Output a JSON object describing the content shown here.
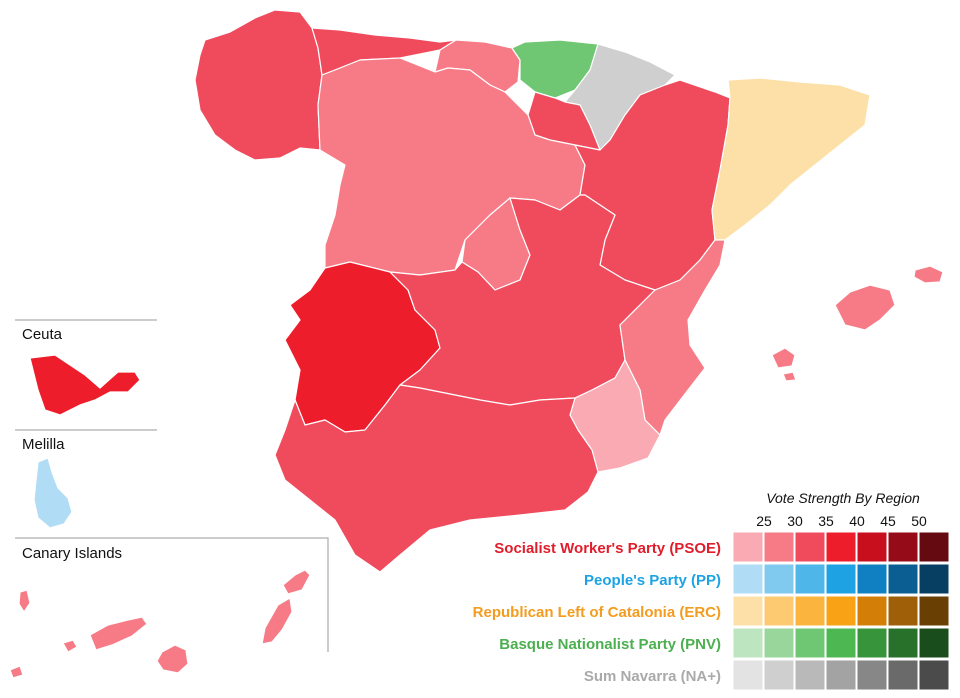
{
  "insets": {
    "ceuta": "Ceuta",
    "melilla": "Melilla",
    "canary": "Canary Islands"
  },
  "legend": {
    "title": "Vote Strength By Region",
    "ticks": [
      "25",
      "30",
      "35",
      "40",
      "45",
      "50"
    ],
    "parties": [
      {
        "name": "Socialist Worker's Party (PSOE)",
        "label_color": "#e11d2b",
        "shades": [
          "#f9aab2",
          "#f77b86",
          "#ef4b5d",
          "#ee1d2c",
          "#c80f1e",
          "#950b17",
          "#650a10"
        ]
      },
      {
        "name": "People's Party (PP)",
        "label_color": "#1ca3e3",
        "shades": [
          "#b0ddf5",
          "#80c9ef",
          "#4fb6ea",
          "#1ea2e3",
          "#1180c3",
          "#0b5e91",
          "#063f61"
        ]
      },
      {
        "name": "Republican Left of Catalonia (ERC)",
        "label_color": "#f39c1f",
        "shades": [
          "#fde0a8",
          "#fdca72",
          "#fbb43d",
          "#f9a215",
          "#d37f07",
          "#9e5f08",
          "#6a3f04"
        ]
      },
      {
        "name": "Basque Nationalist Party (PNV)",
        "label_color": "#4caf50",
        "shades": [
          "#bde5bf",
          "#98d69b",
          "#6fc773",
          "#4db851",
          "#37943b",
          "#27712b",
          "#1a4d1c"
        ]
      },
      {
        "name": "Sum Navarra (NA+)",
        "label_color": "#aaaaaa",
        "shades": [
          "#e3e3e3",
          "#cfcfcf",
          "#b9b9b9",
          "#a3a3a3",
          "#878787",
          "#6a6a6a",
          "#4b4b4b"
        ]
      }
    ]
  },
  "region_colors": {
    "galicia": "#ef4b5d",
    "asturias": "#ef4b5d",
    "cantabria": "#f77b86",
    "basque_country": "#6fc773",
    "navarre": "#cfcfcf",
    "la_rioja": "#ef4b5d",
    "castile_leon": "#f77b86",
    "madrid": "#f77b86",
    "aragon": "#ef4b5d",
    "catalonia": "#fde0a8",
    "extremadura": "#ee1d2c",
    "castile_la_mancha": "#ef4b5d",
    "valencia": "#f77b86",
    "murcia": "#f9aab2",
    "andalusia": "#ef4b5d",
    "balearic_islands": "#f77b86",
    "ceuta": "#ee1d2c",
    "melilla": "#b0ddf5",
    "canary_islands": "#f77b86"
  }
}
